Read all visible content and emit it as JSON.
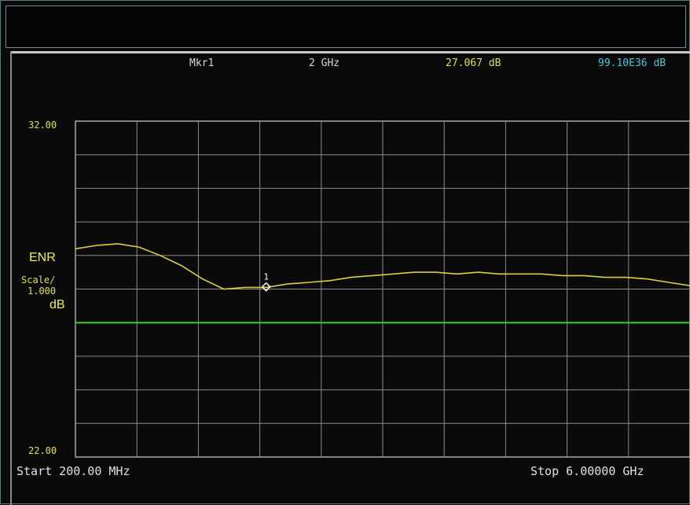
{
  "marker": {
    "label": "Mkr1",
    "frequency": "2 GHz",
    "value": "27.067 dB",
    "value2": "99.10E36 dB"
  },
  "y_axis": {
    "top": "32.00",
    "bottom": "22.00",
    "title": "ENR",
    "scale_label": "Scale/",
    "scale_value": "1.000",
    "unit": "dB"
  },
  "x_axis": {
    "start": "Start 200.00 MHz",
    "stop": "Stop 6.00000 GHz"
  },
  "colors": {
    "trace": "#d8d040",
    "reference_line": "#30d030",
    "grid": "#8c8c8c",
    "marker": "#ffffff"
  },
  "chart_data": {
    "type": "line",
    "xlabel": "",
    "ylabel": "ENR",
    "xlim": [
      0.2,
      6.0
    ],
    "ylim": [
      22,
      32
    ],
    "x_unit": "GHz",
    "y_unit": "dB",
    "grid": true,
    "reference_line": 26.0,
    "marker": {
      "label": "1",
      "x": 2.0,
      "y": 27.067
    },
    "series": [
      {
        "x": [
          0.2,
          0.4,
          0.6,
          0.8,
          1.0,
          1.2,
          1.4,
          1.6,
          1.8,
          2.0,
          2.2,
          2.4,
          2.6,
          2.8,
          3.0,
          3.2,
          3.4,
          3.6,
          3.8,
          4.0,
          4.2,
          4.4,
          4.6,
          4.8,
          5.0,
          5.2,
          5.4,
          5.6,
          5.8,
          6.0
        ],
        "values": [
          28.2,
          28.3,
          28.35,
          28.25,
          28.0,
          27.7,
          27.3,
          27.0,
          27.05,
          27.05,
          27.15,
          27.2,
          27.25,
          27.35,
          27.4,
          27.45,
          27.5,
          27.5,
          27.45,
          27.5,
          27.45,
          27.45,
          27.45,
          27.4,
          27.4,
          27.35,
          27.35,
          27.3,
          27.2,
          27.1
        ]
      }
    ]
  }
}
